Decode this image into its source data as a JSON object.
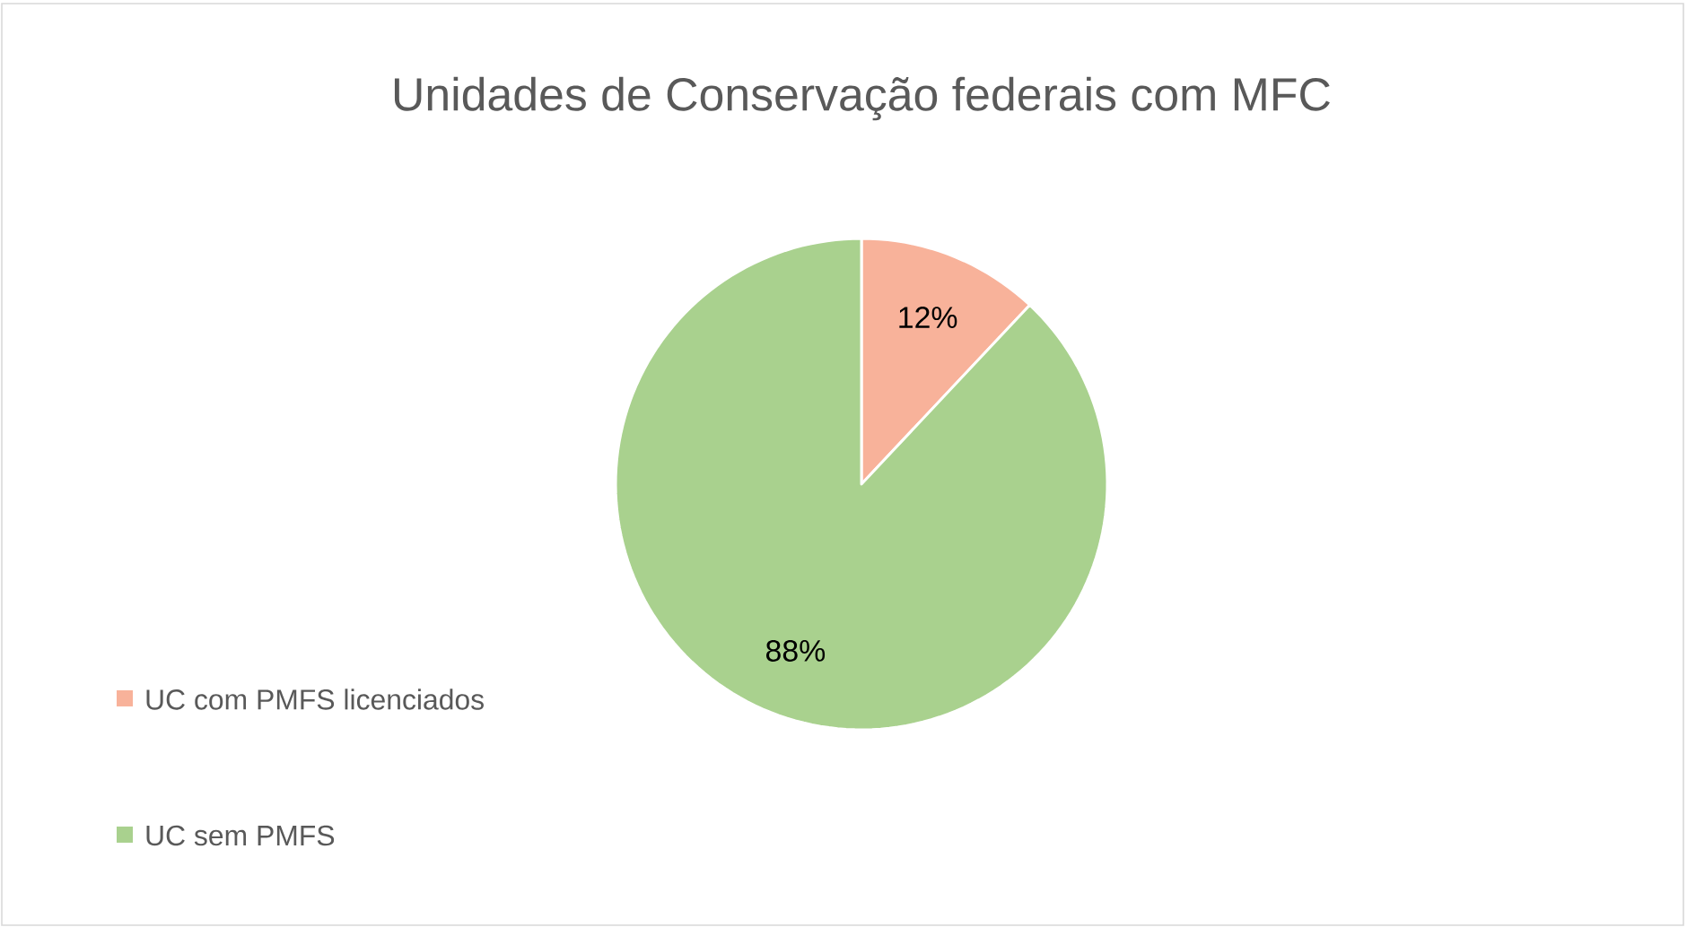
{
  "chart_data": {
    "type": "pie",
    "title": "Unidades de Conservação federais com MFC",
    "categories": [
      "UC com PMFS licenciados",
      "UC sem PMFS"
    ],
    "values": [
      12,
      88
    ],
    "colors": [
      "#f8b29a",
      "#a9d18e"
    ],
    "value_labels": [
      "12%",
      "88%"
    ],
    "legend": "left"
  }
}
